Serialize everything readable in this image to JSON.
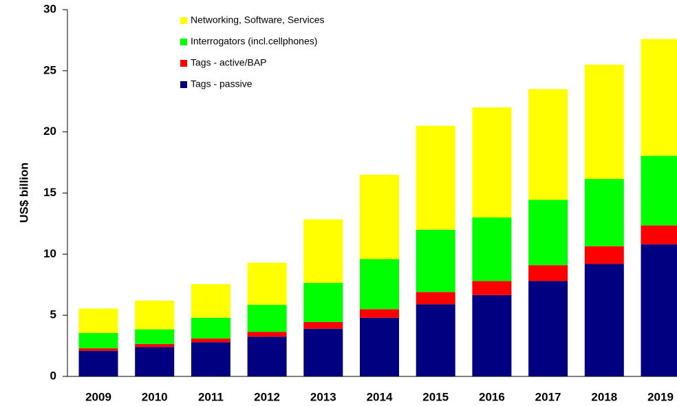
{
  "chart_data": {
    "type": "stacked_bar",
    "y_label": "US$ billion",
    "categories": [
      "2009",
      "2010",
      "2011",
      "2012",
      "2013",
      "2014",
      "2015",
      "2016",
      "2017",
      "2018",
      "2019"
    ],
    "series": [
      {
        "name": "Tags - passive",
        "color": "#000080",
        "values": [
          2.1,
          2.4,
          2.8,
          3.25,
          3.9,
          4.8,
          5.9,
          6.65,
          7.8,
          9.2,
          10.8
        ]
      },
      {
        "name": "Tags - active/BAP",
        "color": "#ff0000",
        "values": [
          0.2,
          0.25,
          0.3,
          0.4,
          0.55,
          0.7,
          1.0,
          1.15,
          1.3,
          1.45,
          1.55
        ]
      },
      {
        "name": "Interrogators (incl.cellphones)",
        "color": "#00ff00",
        "values": [
          1.25,
          1.2,
          1.7,
          2.2,
          3.2,
          4.1,
          5.1,
          5.2,
          5.35,
          5.5,
          5.7
        ]
      },
      {
        "name": "Networking, Software, Services",
        "color": "#ffff00",
        "values": [
          2.0,
          2.35,
          2.75,
          3.45,
          5.2,
          6.9,
          8.5,
          9.0,
          9.05,
          9.35,
          9.55
        ]
      }
    ],
    "ylim": [
      0,
      30
    ],
    "yticks": [
      0,
      5,
      10,
      15,
      20,
      25,
      30
    ],
    "grid": false
  }
}
